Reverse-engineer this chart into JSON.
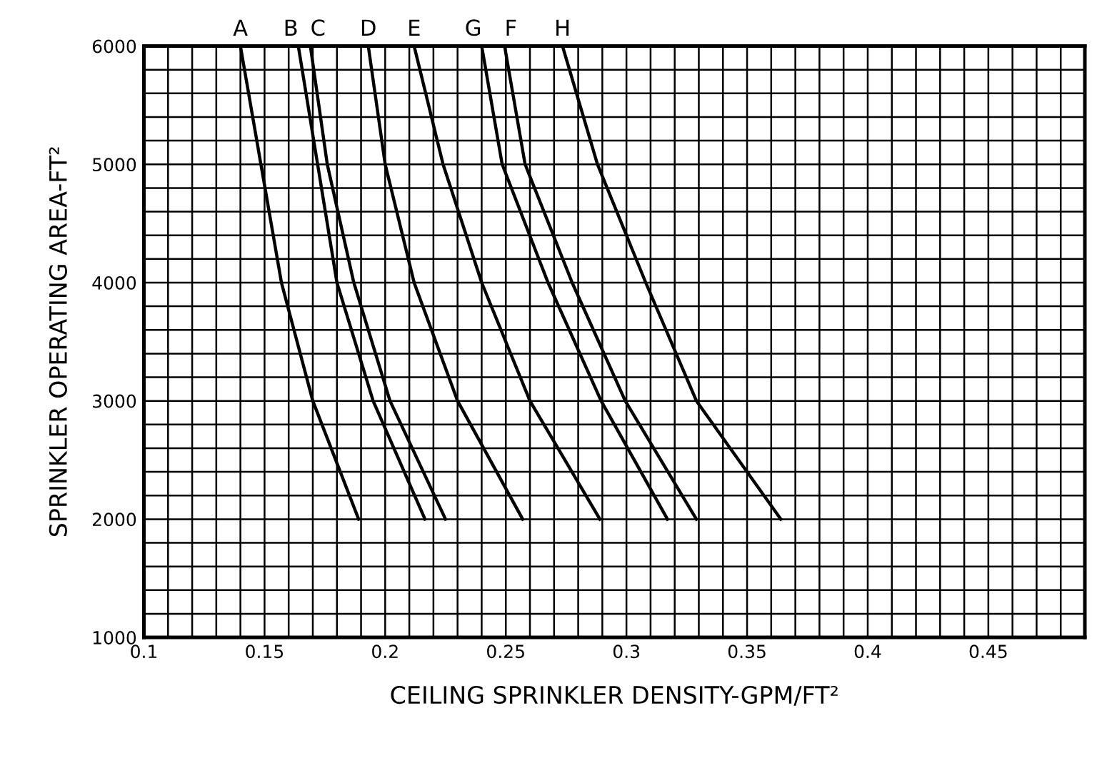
{
  "chart_data": {
    "type": "line",
    "xlabel": "CEILING SPRINKLER DENSITY-GPM/FT²",
    "ylabel": "SPRINKLER OPERATING AREA-FT²",
    "series": [
      {
        "name": "A",
        "color": "#000000",
        "x": [
          0.14,
          0.1485,
          0.157,
          0.17,
          0.189
        ],
        "values": [
          6000,
          5000,
          4000,
          3000,
          2000
        ]
      },
      {
        "name": "B",
        "color": "#000000",
        "x": [
          0.164,
          0.172,
          0.18,
          0.195,
          0.2165
        ],
        "values": [
          6000,
          5000,
          4000,
          3000,
          2000
        ]
      },
      {
        "name": "C",
        "color": "#000000",
        "x": [
          0.169,
          0.176,
          0.187,
          0.202,
          0.225
        ],
        "values": [
          6000,
          5000,
          4000,
          3000,
          2000
        ]
      },
      {
        "name": "D",
        "color": "#000000",
        "x": [
          0.193,
          0.2,
          0.212,
          0.23,
          0.257
        ],
        "values": [
          6000,
          5000,
          4000,
          3000,
          2000
        ]
      },
      {
        "name": "E",
        "color": "#000000",
        "x": [
          0.212,
          0.224,
          0.24,
          0.26,
          0.289
        ],
        "values": [
          6000,
          5000,
          4000,
          3000,
          2000
        ]
      },
      {
        "name": "G",
        "color": "#000000",
        "x": [
          0.24,
          0.2485,
          0.2675,
          0.2895,
          0.317
        ],
        "values": [
          6000,
          5000,
          4000,
          3000,
          2000
        ]
      },
      {
        "name": "F",
        "color": "#000000",
        "x": [
          0.2495,
          0.258,
          0.2775,
          0.2995,
          0.329
        ],
        "values": [
          6000,
          5000,
          4000,
          3000,
          2000
        ]
      },
      {
        "name": "H",
        "color": "#000000",
        "x": [
          0.2735,
          0.288,
          0.308,
          0.329,
          0.364
        ],
        "values": [
          6000,
          5000,
          4000,
          3000,
          2000
        ]
      }
    ],
    "xlim": [
      0.1,
      0.49
    ],
    "ylim": [
      1000,
      6000
    ],
    "xticks": [
      0.1,
      {
        "value": 0.11,
        "label": null
      },
      {
        "value": 0.12,
        "label": null
      },
      {
        "value": 0.13,
        "label": null
      },
      {
        "value": 0.14,
        "label": null
      },
      0.15,
      {
        "value": 0.16,
        "label": null
      },
      {
        "value": 0.17,
        "label": null
      },
      {
        "value": 0.18,
        "label": null
      },
      {
        "value": 0.19,
        "label": null
      },
      0.2,
      {
        "value": 0.21,
        "label": null
      },
      {
        "value": 0.22,
        "label": null
      },
      {
        "value": 0.23,
        "label": null
      },
      {
        "value": 0.24,
        "label": null
      },
      0.25,
      {
        "value": 0.26,
        "label": null
      },
      {
        "value": 0.27,
        "label": null
      },
      {
        "value": 0.28,
        "label": null
      },
      {
        "value": 0.29,
        "label": null
      },
      0.3,
      {
        "value": 0.31,
        "label": null
      },
      {
        "value": 0.32,
        "label": null
      },
      {
        "value": 0.33,
        "label": null
      },
      {
        "value": 0.34,
        "label": null
      },
      0.35,
      {
        "value": 0.36,
        "label": null
      },
      {
        "value": 0.37,
        "label": null
      },
      {
        "value": 0.38,
        "label": null
      },
      {
        "value": 0.39,
        "label": null
      },
      0.4,
      {
        "value": 0.41,
        "label": null
      },
      {
        "value": 0.42,
        "label": null
      },
      {
        "value": 0.43,
        "label": null
      },
      {
        "value": 0.44,
        "label": null
      },
      0.45,
      {
        "value": 0.46,
        "label": null
      },
      {
        "value": 0.47,
        "label": null
      },
      {
        "value": 0.48,
        "label": null
      },
      {
        "value": 0.49,
        "label": null
      }
    ],
    "yticks": [
      1000,
      {
        "value": 1200,
        "label": null
      },
      {
        "value": 1400,
        "label": null
      },
      {
        "value": 1600,
        "label": null
      },
      {
        "value": 1800,
        "label": null
      },
      2000,
      {
        "value": 2200,
        "label": null
      },
      {
        "value": 2400,
        "label": null
      },
      {
        "value": 2600,
        "label": null
      },
      {
        "value": 2800,
        "label": null
      },
      3000,
      {
        "value": 3200,
        "label": null
      },
      {
        "value": 3400,
        "label": null
      },
      {
        "value": 3600,
        "label": null
      },
      {
        "value": 3800,
        "label": null
      },
      4000,
      {
        "value": 4200,
        "label": null
      },
      {
        "value": 4400,
        "label": null
      },
      {
        "value": 4600,
        "label": null
      },
      {
        "value": 4800,
        "label": null
      },
      5000,
      {
        "value": 5200,
        "label": null
      },
      {
        "value": 5400,
        "label": null
      },
      {
        "value": 5600,
        "label": null
      },
      {
        "value": 5800,
        "label": null
      },
      6000
    ],
    "grid": true,
    "legend": false,
    "marker": "none",
    "line_style": "solid"
  }
}
